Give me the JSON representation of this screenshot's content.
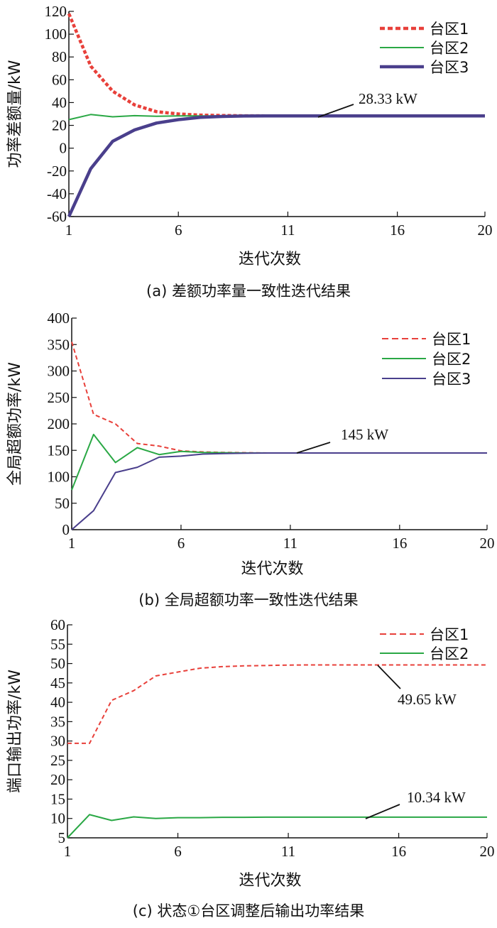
{
  "colors": {
    "taiqu1": "#e8403a",
    "taiqu2": "#2aa845",
    "taiqu3": "#4a3f8c"
  },
  "chart_data": [
    {
      "type": "line",
      "xlabel": "迭代次数",
      "ylabel": "功率差额量/kW",
      "caption": "(a) 差额功率量一致性迭代结果",
      "xlim": [
        1,
        20
      ],
      "ylim": [
        -60,
        120
      ],
      "xticks": [
        1,
        6,
        11,
        16,
        20
      ],
      "yticks": [
        -60,
        -40,
        -20,
        0,
        20,
        40,
        60,
        80,
        100,
        120
      ],
      "legend_position": "top-right",
      "series": [
        {
          "name": "台区1",
          "style": "dashed",
          "width": 4.5,
          "color": "#e8403a",
          "x": [
            1,
            2,
            3,
            4,
            5,
            6,
            7,
            8,
            9,
            10,
            11,
            12,
            13,
            14,
            15,
            16,
            17,
            18,
            19,
            20
          ],
          "values": [
            118,
            72,
            50,
            38,
            32,
            30,
            29,
            28.6,
            28.4,
            28.33,
            28.33,
            28.33,
            28.33,
            28.33,
            28.33,
            28.33,
            28.33,
            28.33,
            28.33,
            28.33
          ]
        },
        {
          "name": "台区2",
          "style": "solid",
          "width": 2,
          "color": "#2aa845",
          "x": [
            1,
            2,
            3,
            4,
            5,
            6,
            7,
            8,
            9,
            10,
            11,
            12,
            13,
            14,
            15,
            16,
            17,
            18,
            19,
            20
          ],
          "values": [
            25,
            29.5,
            27.5,
            28.5,
            28,
            28.3,
            28.3,
            28.3,
            28.33,
            28.33,
            28.33,
            28.33,
            28.33,
            28.33,
            28.33,
            28.33,
            28.33,
            28.33,
            28.33,
            28.33
          ]
        },
        {
          "name": "台区3",
          "style": "solid",
          "width": 4.5,
          "color": "#4a3f8c",
          "x": [
            1,
            2,
            3,
            4,
            5,
            6,
            7,
            8,
            9,
            10,
            11,
            12,
            13,
            14,
            15,
            16,
            17,
            18,
            19,
            20
          ],
          "values": [
            -60,
            -18,
            6,
            16,
            22,
            25,
            27,
            27.8,
            28.2,
            28.33,
            28.33,
            28.33,
            28.33,
            28.33,
            28.33,
            28.33,
            28.33,
            28.33,
            28.33,
            28.33
          ]
        }
      ],
      "annotation": {
        "text": "28.33 kW",
        "x": 12.5,
        "y": 28.33
      }
    },
    {
      "type": "line",
      "xlabel": "迭代次数",
      "ylabel": "全局超额功率/kW",
      "caption": "(b) 全局超额功率一致性迭代结果",
      "xlim": [
        1,
        20
      ],
      "ylim": [
        0,
        400
      ],
      "xticks": [
        1,
        6,
        11,
        16,
        20
      ],
      "yticks": [
        0,
        50,
        100,
        150,
        200,
        250,
        300,
        350,
        400
      ],
      "legend_position": "top-right",
      "series": [
        {
          "name": "台区1",
          "style": "dashed",
          "width": 2,
          "color": "#e8403a",
          "x": [
            1,
            2,
            3,
            4,
            5,
            6,
            7,
            8,
            9,
            10,
            11,
            12,
            13,
            14,
            15,
            16,
            17,
            18,
            19,
            20
          ],
          "values": [
            355,
            218,
            200,
            163,
            158,
            149,
            147,
            146,
            145.5,
            145,
            145,
            145,
            145,
            145,
            145,
            145,
            145,
            145,
            145,
            145
          ]
        },
        {
          "name": "台区2",
          "style": "solid",
          "width": 2,
          "color": "#2aa845",
          "x": [
            1,
            2,
            3,
            4,
            5,
            6,
            7,
            8,
            9,
            10,
            11,
            12,
            13,
            14,
            15,
            16,
            17,
            18,
            19,
            20
          ],
          "values": [
            75,
            180,
            127,
            155,
            142,
            148,
            146,
            145.5,
            145,
            145,
            145,
            145,
            145,
            145,
            145,
            145,
            145,
            145,
            145,
            145
          ]
        },
        {
          "name": "台区3",
          "style": "solid",
          "width": 2,
          "color": "#4a3f8c",
          "x": [
            1,
            2,
            3,
            4,
            5,
            6,
            7,
            8,
            9,
            10,
            11,
            12,
            13,
            14,
            15,
            16,
            17,
            18,
            19,
            20
          ],
          "values": [
            0,
            36,
            108,
            118,
            137,
            139,
            143,
            144,
            144.5,
            145,
            145,
            145,
            145,
            145,
            145,
            145,
            145,
            145,
            145,
            145
          ]
        }
      ],
      "annotation": {
        "text": "145 kW",
        "x": 11.5,
        "y": 145
      }
    },
    {
      "type": "line",
      "xlabel": "迭代次数",
      "ylabel": "端口输出功率/kW",
      "caption": "(c) 状态①台区调整后输出功率结果",
      "xlim": [
        1,
        20
      ],
      "ylim": [
        5,
        60
      ],
      "xticks": [
        1,
        6,
        11,
        16,
        20
      ],
      "yticks": [
        5,
        10,
        15,
        20,
        25,
        30,
        35,
        40,
        45,
        50,
        55,
        60
      ],
      "legend_position": "top-right",
      "series": [
        {
          "name": "台区1",
          "style": "dashed",
          "width": 2,
          "color": "#e8403a",
          "x": [
            1,
            2,
            3,
            4,
            5,
            6,
            7,
            8,
            9,
            10,
            11,
            12,
            13,
            14,
            15,
            16,
            17,
            18,
            19,
            20
          ],
          "values": [
            29.4,
            29.4,
            40.5,
            43,
            46.8,
            47.8,
            48.8,
            49.2,
            49.4,
            49.5,
            49.6,
            49.65,
            49.65,
            49.65,
            49.65,
            49.65,
            49.65,
            49.65,
            49.65,
            49.65
          ]
        },
        {
          "name": "台区2",
          "style": "solid",
          "width": 2,
          "color": "#2aa845",
          "x": [
            1,
            2,
            3,
            4,
            5,
            6,
            7,
            8,
            9,
            10,
            11,
            12,
            13,
            14,
            15,
            16,
            17,
            18,
            19,
            20
          ],
          "values": [
            5,
            11,
            9.5,
            10.4,
            10,
            10.2,
            10.2,
            10.3,
            10.3,
            10.34,
            10.34,
            10.34,
            10.34,
            10.34,
            10.34,
            10.34,
            10.34,
            10.34,
            10.34,
            10.34
          ]
        }
      ],
      "annotations": [
        {
          "text": "49.65 kW",
          "x": 15.5,
          "y": 49.65
        },
        {
          "text": "10.34 kW",
          "x": 15.0,
          "y": 10.34
        }
      ]
    }
  ]
}
